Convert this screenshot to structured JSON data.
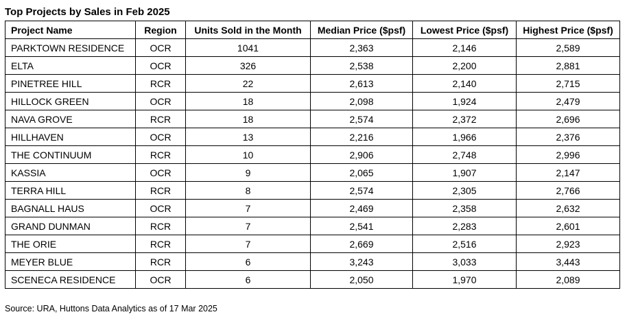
{
  "title": "Top Projects by Sales in Feb 2025",
  "table": {
    "headers": {
      "name": "Project Name",
      "region": "Region",
      "units": "Units Sold in the Month",
      "median": "Median Price ($psf)",
      "lowest": "Lowest Price ($psf)",
      "highest": "Highest Price ($psf)"
    },
    "rows": [
      {
        "name": "PARKTOWN RESIDENCE",
        "region": "OCR",
        "units": "1041",
        "median": "2,363",
        "lowest": "2,146",
        "highest": "2,589"
      },
      {
        "name": "ELTA",
        "region": "OCR",
        "units": "326",
        "median": "2,538",
        "lowest": "2,200",
        "highest": "2,881"
      },
      {
        "name": "PINETREE HILL",
        "region": "RCR",
        "units": "22",
        "median": "2,613",
        "lowest": "2,140",
        "highest": "2,715"
      },
      {
        "name": "HILLOCK GREEN",
        "region": "OCR",
        "units": "18",
        "median": "2,098",
        "lowest": "1,924",
        "highest": "2,479"
      },
      {
        "name": "NAVA GROVE",
        "region": "RCR",
        "units": "18",
        "median": "2,574",
        "lowest": "2,372",
        "highest": "2,696"
      },
      {
        "name": "HILLHAVEN",
        "region": "OCR",
        "units": "13",
        "median": "2,216",
        "lowest": "1,966",
        "highest": "2,376"
      },
      {
        "name": "THE CONTINUUM",
        "region": "RCR",
        "units": "10",
        "median": "2,906",
        "lowest": "2,748",
        "highest": "2,996"
      },
      {
        "name": "KASSIA",
        "region": "OCR",
        "units": "9",
        "median": "2,065",
        "lowest": "1,907",
        "highest": "2,147"
      },
      {
        "name": "TERRA HILL",
        "region": "RCR",
        "units": "8",
        "median": "2,574",
        "lowest": "2,305",
        "highest": "2,766"
      },
      {
        "name": "BAGNALL HAUS",
        "region": "OCR",
        "units": "7",
        "median": "2,469",
        "lowest": "2,358",
        "highest": "2,632"
      },
      {
        "name": "GRAND DUNMAN",
        "region": "RCR",
        "units": "7",
        "median": "2,541",
        "lowest": "2,283",
        "highest": "2,601"
      },
      {
        "name": "THE ORIE",
        "region": "RCR",
        "units": "7",
        "median": "2,669",
        "lowest": "2,516",
        "highest": "2,923"
      },
      {
        "name": "MEYER BLUE",
        "region": "RCR",
        "units": "6",
        "median": "3,243",
        "lowest": "3,033",
        "highest": "3,443"
      },
      {
        "name": "SCENECA RESIDENCE",
        "region": "OCR",
        "units": "6",
        "median": "2,050",
        "lowest": "1,970",
        "highest": "2,089"
      }
    ]
  },
  "source": "Source: URA, Huttons Data Analytics as of 17 Mar 2025"
}
